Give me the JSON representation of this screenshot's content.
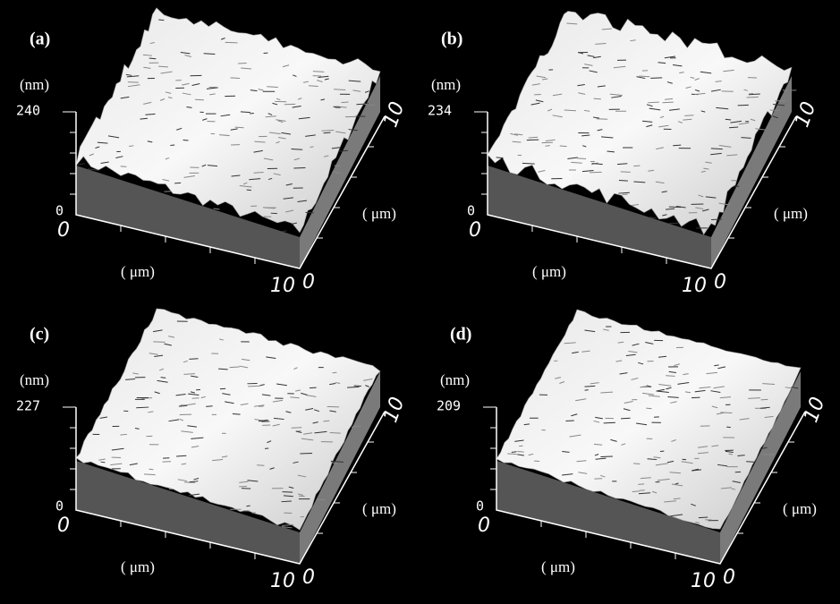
{
  "panels": [
    {
      "label": "(a)",
      "z_unit": "(nm)",
      "z_max": "240",
      "z_min": "0",
      "x_start": "0",
      "x_end": "10",
      "x_unit": "( μm)",
      "y_start": "0",
      "y_end": "10",
      "y_unit": "( μm)"
    },
    {
      "label": "(b)",
      "z_unit": "(nm)",
      "z_max": "234",
      "z_min": "0",
      "x_start": "0",
      "x_end": "10",
      "x_unit": "( μm)",
      "y_start": "0",
      "y_end": "10",
      "y_unit": "( μm)"
    },
    {
      "label": "(c)",
      "z_unit": "(nm)",
      "z_max": "227",
      "z_min": "0",
      "x_start": "0",
      "x_end": "10",
      "x_unit": "( μm)",
      "y_start": "0",
      "y_end": "10",
      "y_unit": "( μm)"
    },
    {
      "label": "(d)",
      "z_unit": "(nm)",
      "z_max": "209",
      "z_min": "0",
      "x_start": "0",
      "x_end": "10",
      "x_unit": "( μm)",
      "y_start": "0",
      "y_end": "10",
      "y_unit": "( μm)"
    }
  ]
}
